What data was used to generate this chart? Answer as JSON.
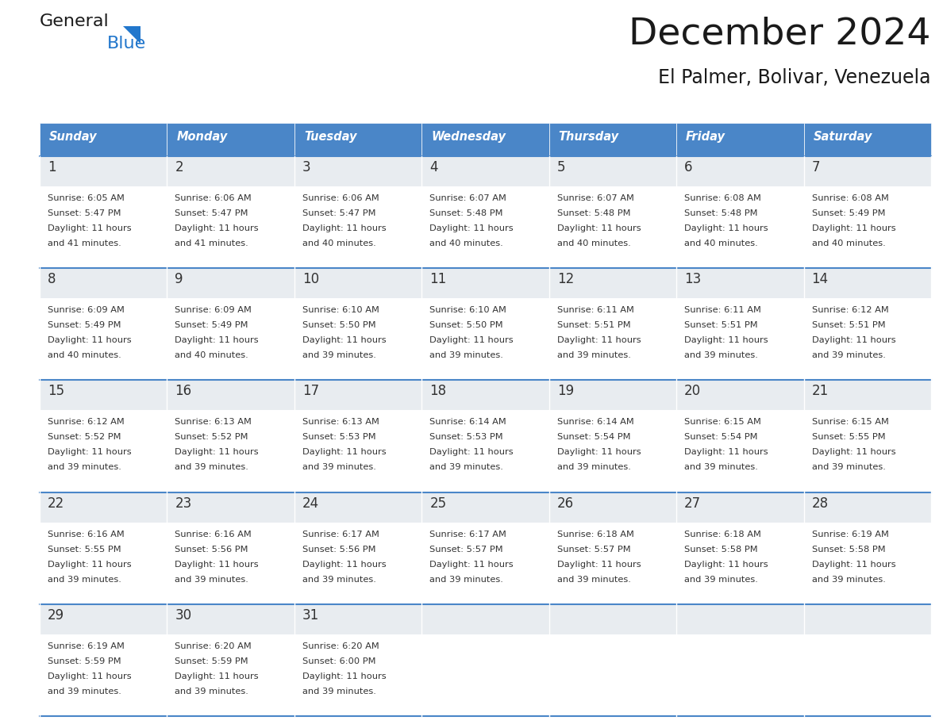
{
  "title": "December 2024",
  "subtitle": "El Palmer, Bolivar, Venezuela",
  "header_color": "#4A86C8",
  "header_text_color": "#FFFFFF",
  "day_names": [
    "Sunday",
    "Monday",
    "Tuesday",
    "Wednesday",
    "Thursday",
    "Friday",
    "Saturday"
  ],
  "bg_color": "#FFFFFF",
  "cell_top_bg": "#E8ECF0",
  "cell_body_bg": "#FFFFFF",
  "border_color": "#4A86C8",
  "text_color": "#333333",
  "logo_black": "#1a1a1a",
  "logo_blue": "#2277CC",
  "days": [
    {
      "day": 1,
      "col": 0,
      "row": 0,
      "sunrise": "6:05 AM",
      "sunset": "5:47 PM",
      "daylight": "11 hours and 41 minutes."
    },
    {
      "day": 2,
      "col": 1,
      "row": 0,
      "sunrise": "6:06 AM",
      "sunset": "5:47 PM",
      "daylight": "11 hours and 41 minutes."
    },
    {
      "day": 3,
      "col": 2,
      "row": 0,
      "sunrise": "6:06 AM",
      "sunset": "5:47 PM",
      "daylight": "11 hours and 40 minutes."
    },
    {
      "day": 4,
      "col": 3,
      "row": 0,
      "sunrise": "6:07 AM",
      "sunset": "5:48 PM",
      "daylight": "11 hours and 40 minutes."
    },
    {
      "day": 5,
      "col": 4,
      "row": 0,
      "sunrise": "6:07 AM",
      "sunset": "5:48 PM",
      "daylight": "11 hours and 40 minutes."
    },
    {
      "day": 6,
      "col": 5,
      "row": 0,
      "sunrise": "6:08 AM",
      "sunset": "5:48 PM",
      "daylight": "11 hours and 40 minutes."
    },
    {
      "day": 7,
      "col": 6,
      "row": 0,
      "sunrise": "6:08 AM",
      "sunset": "5:49 PM",
      "daylight": "11 hours and 40 minutes."
    },
    {
      "day": 8,
      "col": 0,
      "row": 1,
      "sunrise": "6:09 AM",
      "sunset": "5:49 PM",
      "daylight": "11 hours and 40 minutes."
    },
    {
      "day": 9,
      "col": 1,
      "row": 1,
      "sunrise": "6:09 AM",
      "sunset": "5:49 PM",
      "daylight": "11 hours and 40 minutes."
    },
    {
      "day": 10,
      "col": 2,
      "row": 1,
      "sunrise": "6:10 AM",
      "sunset": "5:50 PM",
      "daylight": "11 hours and 39 minutes."
    },
    {
      "day": 11,
      "col": 3,
      "row": 1,
      "sunrise": "6:10 AM",
      "sunset": "5:50 PM",
      "daylight": "11 hours and 39 minutes."
    },
    {
      "day": 12,
      "col": 4,
      "row": 1,
      "sunrise": "6:11 AM",
      "sunset": "5:51 PM",
      "daylight": "11 hours and 39 minutes."
    },
    {
      "day": 13,
      "col": 5,
      "row": 1,
      "sunrise": "6:11 AM",
      "sunset": "5:51 PM",
      "daylight": "11 hours and 39 minutes."
    },
    {
      "day": 14,
      "col": 6,
      "row": 1,
      "sunrise": "6:12 AM",
      "sunset": "5:51 PM",
      "daylight": "11 hours and 39 minutes."
    },
    {
      "day": 15,
      "col": 0,
      "row": 2,
      "sunrise": "6:12 AM",
      "sunset": "5:52 PM",
      "daylight": "11 hours and 39 minutes."
    },
    {
      "day": 16,
      "col": 1,
      "row": 2,
      "sunrise": "6:13 AM",
      "sunset": "5:52 PM",
      "daylight": "11 hours and 39 minutes."
    },
    {
      "day": 17,
      "col": 2,
      "row": 2,
      "sunrise": "6:13 AM",
      "sunset": "5:53 PM",
      "daylight": "11 hours and 39 minutes."
    },
    {
      "day": 18,
      "col": 3,
      "row": 2,
      "sunrise": "6:14 AM",
      "sunset": "5:53 PM",
      "daylight": "11 hours and 39 minutes."
    },
    {
      "day": 19,
      "col": 4,
      "row": 2,
      "sunrise": "6:14 AM",
      "sunset": "5:54 PM",
      "daylight": "11 hours and 39 minutes."
    },
    {
      "day": 20,
      "col": 5,
      "row": 2,
      "sunrise": "6:15 AM",
      "sunset": "5:54 PM",
      "daylight": "11 hours and 39 minutes."
    },
    {
      "day": 21,
      "col": 6,
      "row": 2,
      "sunrise": "6:15 AM",
      "sunset": "5:55 PM",
      "daylight": "11 hours and 39 minutes."
    },
    {
      "day": 22,
      "col": 0,
      "row": 3,
      "sunrise": "6:16 AM",
      "sunset": "5:55 PM",
      "daylight": "11 hours and 39 minutes."
    },
    {
      "day": 23,
      "col": 1,
      "row": 3,
      "sunrise": "6:16 AM",
      "sunset": "5:56 PM",
      "daylight": "11 hours and 39 minutes."
    },
    {
      "day": 24,
      "col": 2,
      "row": 3,
      "sunrise": "6:17 AM",
      "sunset": "5:56 PM",
      "daylight": "11 hours and 39 minutes."
    },
    {
      "day": 25,
      "col": 3,
      "row": 3,
      "sunrise": "6:17 AM",
      "sunset": "5:57 PM",
      "daylight": "11 hours and 39 minutes."
    },
    {
      "day": 26,
      "col": 4,
      "row": 3,
      "sunrise": "6:18 AM",
      "sunset": "5:57 PM",
      "daylight": "11 hours and 39 minutes."
    },
    {
      "day": 27,
      "col": 5,
      "row": 3,
      "sunrise": "6:18 AM",
      "sunset": "5:58 PM",
      "daylight": "11 hours and 39 minutes."
    },
    {
      "day": 28,
      "col": 6,
      "row": 3,
      "sunrise": "6:19 AM",
      "sunset": "5:58 PM",
      "daylight": "11 hours and 39 minutes."
    },
    {
      "day": 29,
      "col": 0,
      "row": 4,
      "sunrise": "6:19 AM",
      "sunset": "5:59 PM",
      "daylight": "11 hours and 39 minutes."
    },
    {
      "day": 30,
      "col": 1,
      "row": 4,
      "sunrise": "6:20 AM",
      "sunset": "5:59 PM",
      "daylight": "11 hours and 39 minutes."
    },
    {
      "day": 31,
      "col": 2,
      "row": 4,
      "sunrise": "6:20 AM",
      "sunset": "6:00 PM",
      "daylight": "11 hours and 39 minutes."
    }
  ]
}
